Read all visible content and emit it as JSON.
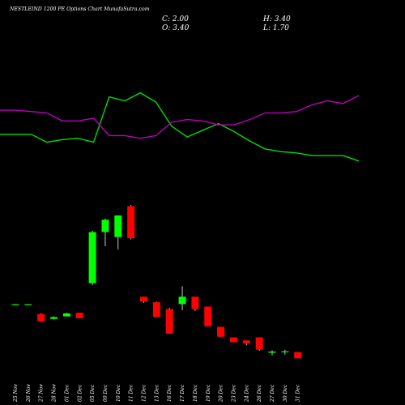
{
  "header": {
    "title": "NESTLEIND 1200  PE Options  Chart MunafaSutra.com",
    "close": "C: 2.00",
    "open": "O: 3.40",
    "high": "H: 3.40",
    "low": "L: 1.70"
  },
  "colors": {
    "background": "#000000",
    "up": "#00ff00",
    "down": "#ff0000",
    "line_green": "#00dd00",
    "line_purple": "#bb00bb",
    "text": "#ffffff"
  },
  "chart_data": [
    {
      "type": "line",
      "series": [
        {
          "values": [
            0.55,
            0.55,
            0.55,
            0.61,
            0.59,
            0.58,
            0.61,
            0.27,
            0.3,
            0.24,
            0.31,
            0.49,
            0.57,
            0.52,
            0.47,
            0.53,
            0.6,
            0.66,
            0.68,
            0.69,
            0.71,
            0.71,
            0.71,
            0.75
          ]
        },
        {
          "values": [
            0.37,
            0.37,
            0.38,
            0.39,
            0.45,
            0.45,
            0.43,
            0.56,
            0.56,
            0.58,
            0.56,
            0.46,
            0.44,
            0.45,
            0.48,
            0.48,
            0.44,
            0.39,
            0.39,
            0.38,
            0.33,
            0.3,
            0.32,
            0.26
          ]
        }
      ]
    },
    {
      "type": "candlestick",
      "categories": [
        "25 Nov",
        "26 Nov",
        "27 Nov",
        "28 Nov",
        "01 Dec",
        "02 Dec",
        "05 Dec",
        "09 Dec",
        "10 Dec",
        "11 Dec",
        "12 Dec",
        "13 Dec",
        "16 Dec",
        "17 Dec",
        "18 Dec",
        "19 Dec",
        "20 Dec",
        "23 Dec",
        "24 Dec",
        "26 Dec",
        "27 Dec",
        "30 Dec",
        "31 Dec"
      ],
      "ohlc": [
        [
          13.0,
          13.1,
          12.9,
          13.0
        ],
        [
          13.0,
          13.1,
          12.9,
          13.0
        ],
        [
          11.5,
          11.6,
          10.2,
          10.3
        ],
        [
          10.7,
          11.1,
          10.6,
          11.0
        ],
        [
          11.1,
          11.7,
          11.1,
          11.6
        ],
        [
          11.7,
          11.7,
          10.8,
          10.8
        ],
        [
          16.5,
          25.0,
          16.2,
          24.8
        ],
        [
          24.8,
          27.0,
          22.5,
          26.8
        ],
        [
          24.0,
          27.5,
          22.0,
          27.5
        ],
        [
          29.0,
          29.2,
          23.6,
          23.8
        ],
        [
          14.3,
          14.3,
          13.3,
          13.5
        ],
        [
          13.4,
          13.5,
          11.0,
          11.0
        ],
        [
          12.3,
          12.5,
          8.3,
          8.3
        ],
        [
          13.1,
          16.0,
          12.1,
          14.3
        ],
        [
          14.3,
          14.3,
          12.0,
          12.3
        ],
        [
          12.7,
          12.7,
          9.5,
          9.5
        ],
        [
          9.4,
          9.4,
          7.8,
          7.8
        ],
        [
          7.7,
          7.7,
          6.9,
          6.9
        ],
        [
          7.2,
          7.2,
          6.4,
          6.7
        ],
        [
          7.7,
          7.7,
          5.5,
          5.7
        ],
        [
          5.2,
          5.6,
          4.8,
          5.4
        ],
        [
          5.3,
          5.7,
          4.9,
          5.4
        ],
        [
          5.3,
          5.3,
          4.3,
          4.3
        ]
      ]
    }
  ]
}
